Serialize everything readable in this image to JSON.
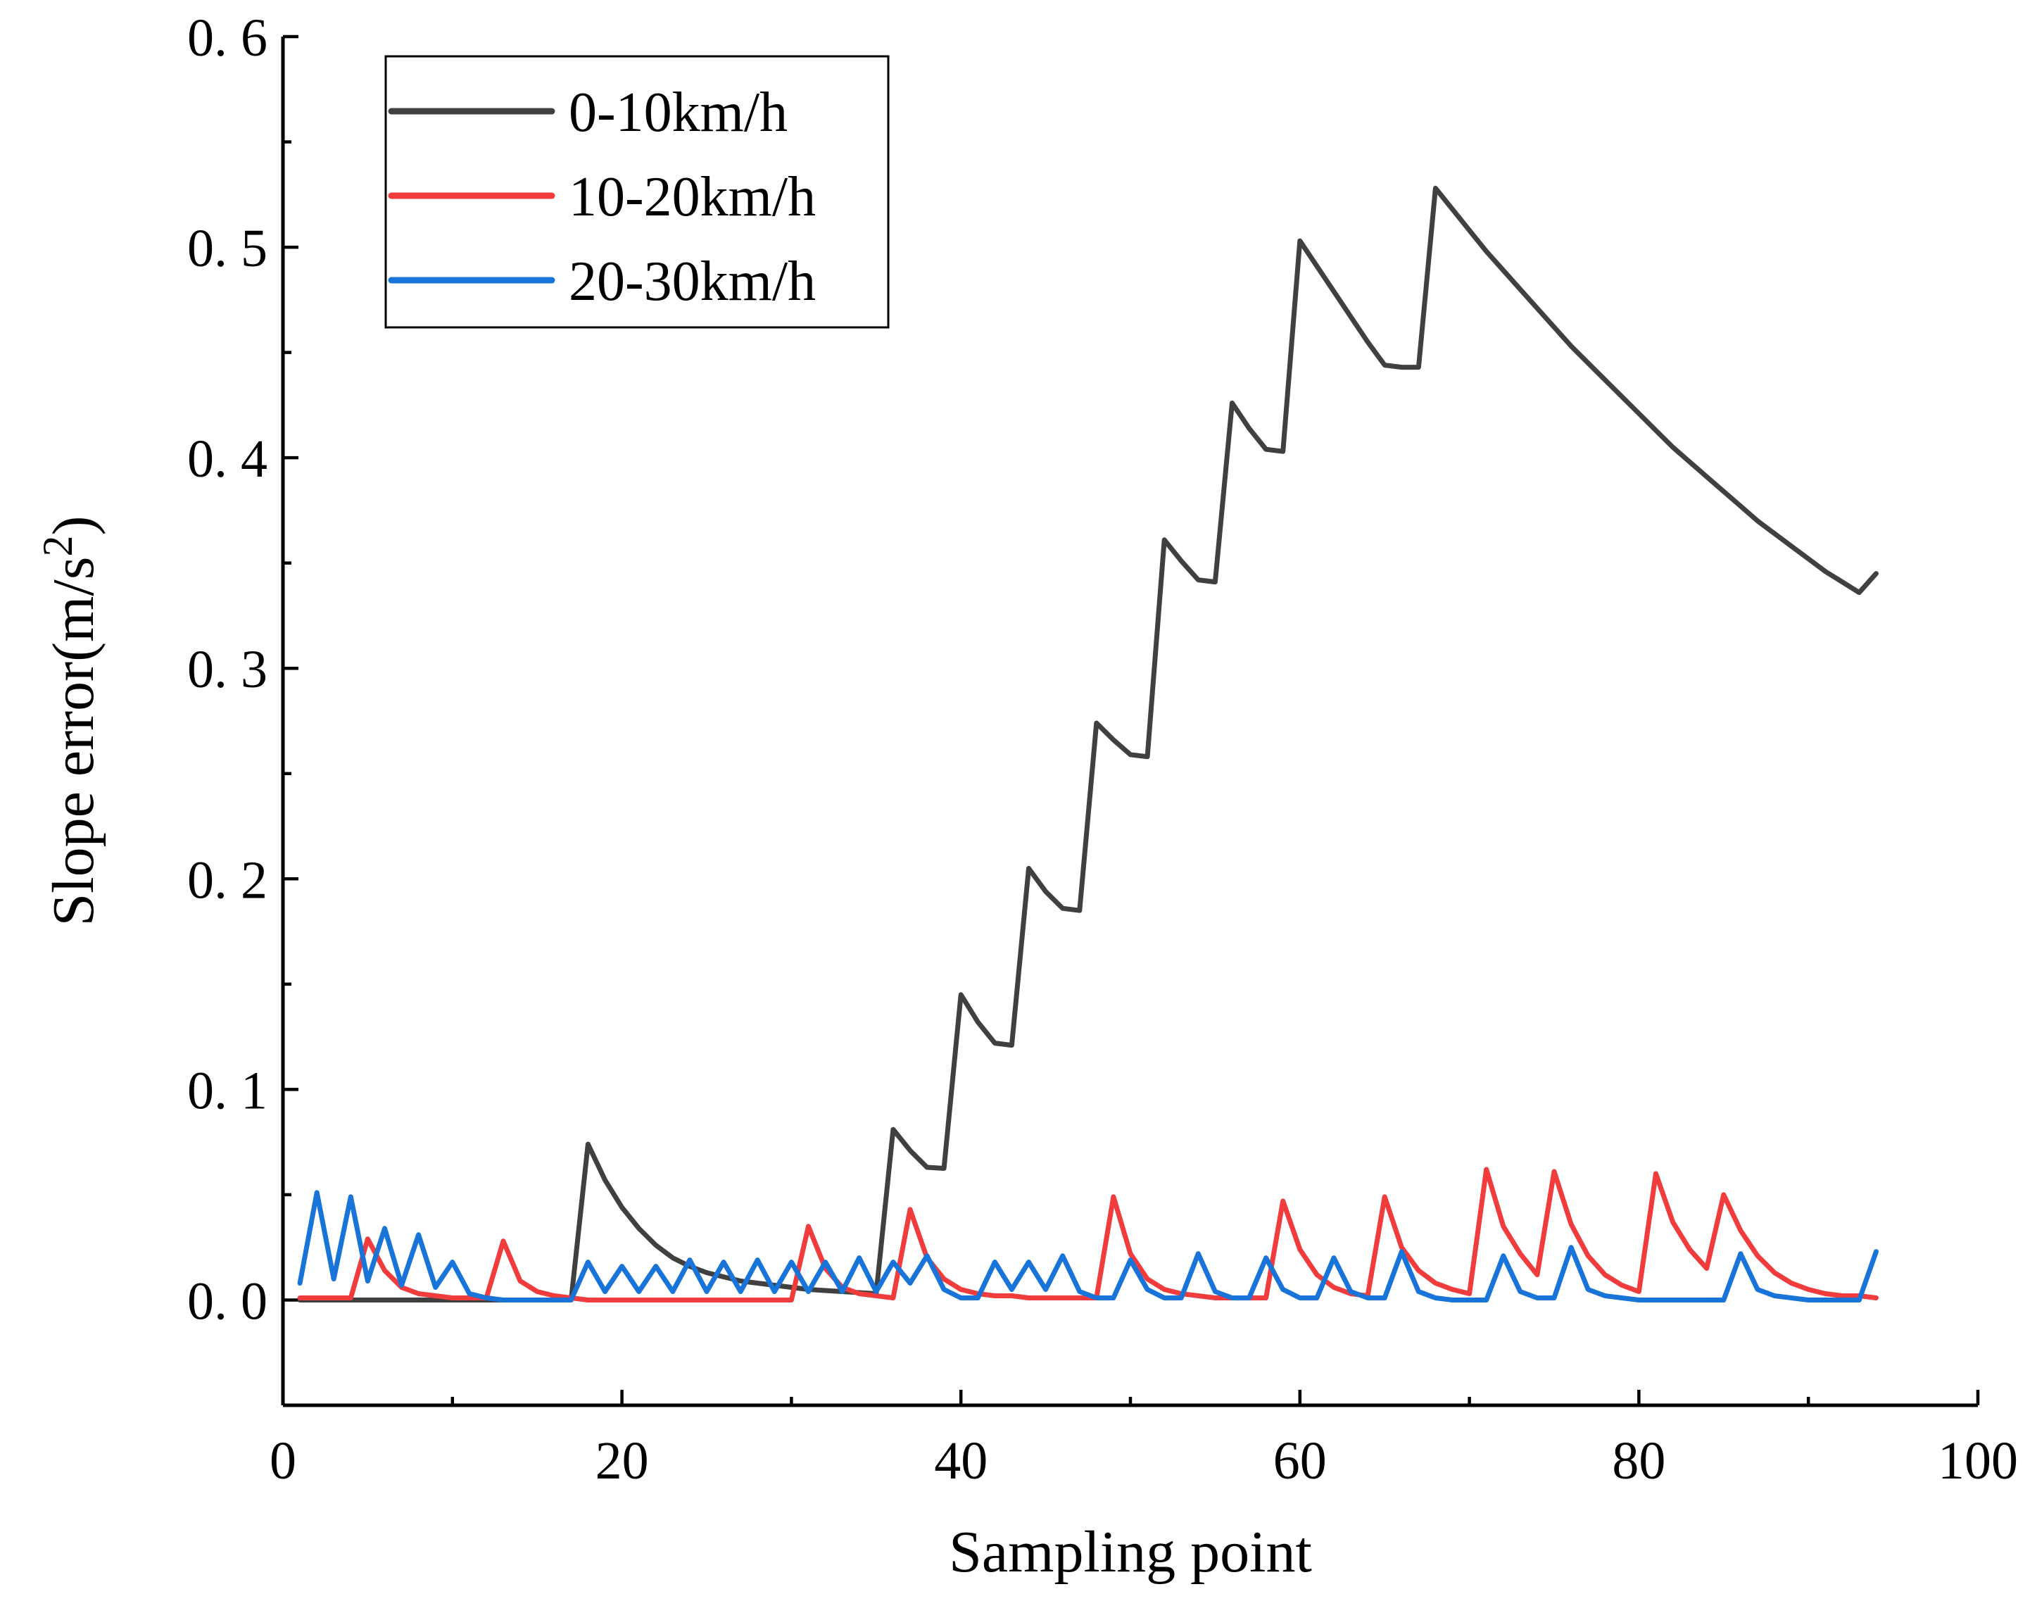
{
  "chart_data": {
    "type": "line",
    "title": "",
    "xlabel": "Sampling point",
    "ylabel": "Slope error(m/s",
    "ylabel_sup": "2",
    "ylabel_close": ")",
    "xlim": [
      0,
      100
    ],
    "ylim": [
      -0.05,
      0.6
    ],
    "xticks": [
      0,
      20,
      40,
      60,
      80,
      100
    ],
    "xtick_labels": [
      "0",
      "20",
      "40",
      "60",
      "80",
      "100"
    ],
    "yticks": [
      0.0,
      0.1,
      0.2,
      0.3,
      0.4,
      0.5,
      0.6
    ],
    "ytick_labels": [
      "0. 0",
      "0. 1",
      "0. 2",
      "0. 3",
      "0. 4",
      "0. 5",
      "0. 6"
    ],
    "grid": false,
    "legend_position": "top-left",
    "series": [
      {
        "name": "0-10km/h",
        "color": "#404040",
        "x": [
          1,
          2,
          3,
          4,
          5,
          6,
          7,
          8,
          9,
          10,
          11,
          12,
          13,
          14,
          15,
          16,
          17,
          18,
          19,
          20,
          21,
          22,
          23,
          24,
          25,
          26,
          27,
          28,
          29,
          30,
          31,
          32,
          33,
          34,
          35,
          36,
          37,
          38,
          39,
          40,
          41,
          42,
          43,
          44,
          45,
          46,
          47,
          48,
          49,
          50,
          51,
          52,
          53,
          54,
          55,
          56,
          57,
          58,
          59,
          60,
          61,
          62,
          63,
          64,
          65,
          66,
          67,
          68,
          69,
          70,
          71,
          72,
          73,
          74,
          75,
          76,
          77,
          78,
          79,
          80,
          81,
          82,
          83,
          84,
          85,
          86,
          87,
          88,
          89,
          90,
          91,
          92,
          93,
          94
        ],
        "y": [
          0,
          0,
          0,
          0,
          0,
          0,
          0,
          0,
          0,
          0,
          0,
          0,
          0,
          0,
          0,
          0,
          0,
          0.074,
          0.057,
          0.044,
          0.034,
          0.026,
          0.02,
          0.016,
          0.013,
          0.011,
          0.009,
          0.008,
          0.007,
          0.006,
          0.005,
          0.0045,
          0.004,
          0.0035,
          0.003,
          0.081,
          0.071,
          0.063,
          0.0625,
          0.145,
          0.132,
          0.122,
          0.121,
          0.205,
          0.194,
          0.186,
          0.185,
          0.274,
          0.266,
          0.259,
          0.258,
          0.361,
          0.351,
          0.342,
          0.341,
          0.426,
          0.414,
          0.404,
          0.403,
          0.503,
          0.491,
          0.479,
          0.467,
          0.455,
          0.444,
          0.443,
          0.443,
          0.528,
          0.518,
          0.508,
          0.498,
          0.489,
          0.48,
          0.471,
          0.462,
          0.453,
          0.445,
          0.437,
          0.429,
          0.421,
          0.413,
          0.405,
          0.398,
          0.391,
          0.384,
          0.377,
          0.37,
          0.364,
          0.358,
          0.352,
          0.346,
          0.341,
          0.336,
          0.345
        ]
      },
      {
        "name": "10-20km/h",
        "color": "#f03c3c",
        "x": [
          1,
          2,
          3,
          4,
          5,
          6,
          7,
          8,
          9,
          10,
          11,
          12,
          13,
          14,
          15,
          16,
          17,
          18,
          19,
          20,
          21,
          22,
          23,
          24,
          25,
          26,
          27,
          28,
          29,
          30,
          31,
          32,
          33,
          34,
          35,
          36,
          37,
          38,
          39,
          40,
          41,
          42,
          43,
          44,
          45,
          46,
          47,
          48,
          49,
          50,
          51,
          52,
          53,
          54,
          55,
          56,
          57,
          58,
          59,
          60,
          61,
          62,
          63,
          64,
          65,
          66,
          67,
          68,
          69,
          70,
          71,
          72,
          73,
          74,
          75,
          76,
          77,
          78,
          79,
          80,
          81,
          82,
          83,
          84,
          85,
          86,
          87,
          88,
          89,
          90,
          91,
          92,
          93,
          94
        ],
        "y": [
          0.001,
          0.001,
          0.001,
          0.001,
          0.029,
          0.014,
          0.006,
          0.003,
          0.002,
          0.001,
          0.001,
          0.001,
          0.028,
          0.009,
          0.004,
          0.002,
          0.001,
          0,
          0,
          0,
          0,
          0,
          0,
          0,
          0,
          0,
          0,
          0,
          0,
          0,
          0.035,
          0.015,
          0.006,
          0.003,
          0.002,
          0.001,
          0.043,
          0.02,
          0.01,
          0.005,
          0.003,
          0.002,
          0.002,
          0.001,
          0.001,
          0.001,
          0.001,
          0.001,
          0.049,
          0.022,
          0.01,
          0.005,
          0.003,
          0.002,
          0.001,
          0.001,
          0.001,
          0.001,
          0.047,
          0.024,
          0.012,
          0.006,
          0.003,
          0.002,
          0.049,
          0.025,
          0.014,
          0.008,
          0.005,
          0.003,
          0.062,
          0.035,
          0.022,
          0.012,
          0.061,
          0.036,
          0.021,
          0.012,
          0.007,
          0.004,
          0.06,
          0.037,
          0.024,
          0.015,
          0.05,
          0.033,
          0.021,
          0.013,
          0.008,
          0.005,
          0.003,
          0.002,
          0.002,
          0.001
        ]
      },
      {
        "name": "20-30km/h",
        "color": "#1874d8",
        "x": [
          1,
          2,
          3,
          4,
          5,
          6,
          7,
          8,
          9,
          10,
          11,
          12,
          13,
          14,
          15,
          16,
          17,
          18,
          19,
          20,
          21,
          22,
          23,
          24,
          25,
          26,
          27,
          28,
          29,
          30,
          31,
          32,
          33,
          34,
          35,
          36,
          37,
          38,
          39,
          40,
          41,
          42,
          43,
          44,
          45,
          46,
          47,
          48,
          49,
          50,
          51,
          52,
          53,
          54,
          55,
          56,
          57,
          58,
          59,
          60,
          61,
          62,
          63,
          64,
          65,
          66,
          67,
          68,
          69,
          70,
          71,
          72,
          73,
          74,
          75,
          76,
          77,
          78,
          79,
          80,
          81,
          82,
          83,
          84,
          85,
          86,
          87,
          88,
          89,
          90,
          91,
          92,
          93,
          94
        ],
        "y": [
          0.008,
          0.051,
          0.01,
          0.049,
          0.009,
          0.034,
          0.007,
          0.031,
          0.006,
          0.018,
          0.003,
          0.001,
          0,
          0,
          0,
          0,
          0,
          0.018,
          0.004,
          0.016,
          0.004,
          0.016,
          0.004,
          0.019,
          0.004,
          0.018,
          0.004,
          0.019,
          0.004,
          0.018,
          0.004,
          0.018,
          0.004,
          0.02,
          0.004,
          0.018,
          0.008,
          0.021,
          0.005,
          0.001,
          0.001,
          0.018,
          0.005,
          0.018,
          0.005,
          0.021,
          0.004,
          0.001,
          0.001,
          0.019,
          0.005,
          0.001,
          0.001,
          0.022,
          0.004,
          0.001,
          0.001,
          0.02,
          0.005,
          0.001,
          0.001,
          0.02,
          0.004,
          0.001,
          0.001,
          0.023,
          0.004,
          0.001,
          0,
          0,
          0,
          0.021,
          0.004,
          0.001,
          0.001,
          0.025,
          0.005,
          0.002,
          0.001,
          0,
          0,
          0,
          0,
          0,
          0,
          0.022,
          0.005,
          0.002,
          0.001,
          0,
          0,
          0,
          0,
          0.023
        ]
      }
    ]
  }
}
